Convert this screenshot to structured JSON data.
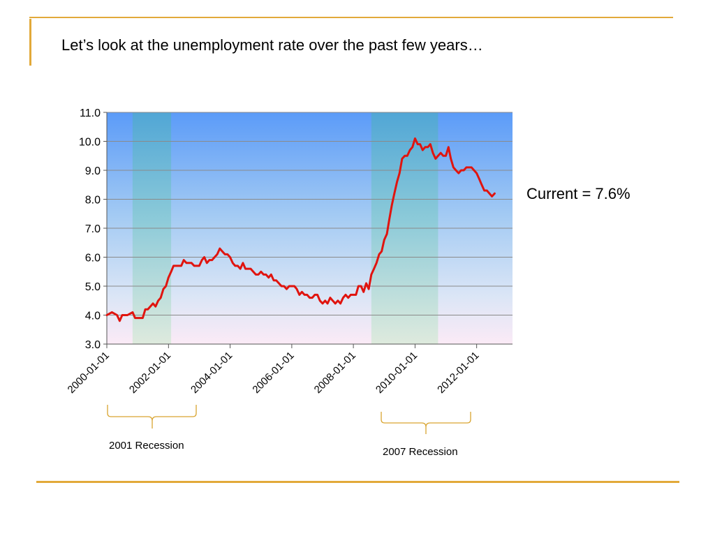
{
  "slide": {
    "title": "Let’s look at the unemployment rate over the past few years…",
    "current_note": "Current = 7.6%",
    "accent_color": "#E2A93A"
  },
  "brackets": [
    {
      "label": "2001 Recession"
    },
    {
      "label": "2007 Recession"
    }
  ],
  "chart_data": {
    "type": "line",
    "title": "",
    "xlabel": "",
    "ylabel": "",
    "ylim": [
      3.0,
      11.0
    ],
    "yticks": [
      "3.0",
      "4.0",
      "5.0",
      "6.0",
      "7.0",
      "8.0",
      "9.0",
      "10.0",
      "11.0"
    ],
    "xlim": [
      "2000-01-01",
      "2013-03-01"
    ],
    "xticks": [
      "2000-01-01",
      "2002-01-01",
      "2004-01-01",
      "2006-01-01",
      "2008-01-01",
      "2010-01-01",
      "2012-01-01"
    ],
    "grid": "horizontal",
    "line_color": "#E0140F",
    "shaded_regions": [
      {
        "start": "2000-11-01",
        "end": "2002-02-01"
      },
      {
        "start": "2008-08-01",
        "end": "2010-10-01"
      }
    ],
    "series": [
      {
        "values": [
          [
            "2000-01-01",
            4.0
          ],
          [
            "2000-03-01",
            4.1
          ],
          [
            "2000-05-01",
            4.0
          ],
          [
            "2000-06-01",
            3.8
          ],
          [
            "2000-07-01",
            4.0
          ],
          [
            "2000-09-01",
            4.0
          ],
          [
            "2000-11-01",
            4.1
          ],
          [
            "2000-12-01",
            3.9
          ],
          [
            "2001-03-01",
            3.9
          ],
          [
            "2001-04-01",
            4.2
          ],
          [
            "2001-05-01",
            4.2
          ],
          [
            "2001-07-01",
            4.4
          ],
          [
            "2001-08-01",
            4.3
          ],
          [
            "2001-09-01",
            4.5
          ],
          [
            "2001-10-01",
            4.6
          ],
          [
            "2001-11-01",
            4.9
          ],
          [
            "2001-12-01",
            5.0
          ],
          [
            "2002-01-01",
            5.3
          ],
          [
            "2002-02-01",
            5.5
          ],
          [
            "2002-03-01",
            5.7
          ],
          [
            "2002-06-01",
            5.7
          ],
          [
            "2002-07-01",
            5.9
          ],
          [
            "2002-08-01",
            5.8
          ],
          [
            "2002-10-01",
            5.8
          ],
          [
            "2002-11-01",
            5.7
          ],
          [
            "2003-01-01",
            5.7
          ],
          [
            "2003-02-01",
            5.9
          ],
          [
            "2003-03-01",
            6.0
          ],
          [
            "2003-04-01",
            5.8
          ],
          [
            "2003-05-01",
            5.9
          ],
          [
            "2003-06-01",
            5.9
          ],
          [
            "2003-07-01",
            6.0
          ],
          [
            "2003-08-01",
            6.1
          ],
          [
            "2003-09-01",
            6.3
          ],
          [
            "2003-10-01",
            6.2
          ],
          [
            "2003-11-01",
            6.1
          ],
          [
            "2003-12-01",
            6.1
          ],
          [
            "2004-01-01",
            6.0
          ],
          [
            "2004-02-01",
            5.8
          ],
          [
            "2004-03-01",
            5.7
          ],
          [
            "2004-04-01",
            5.7
          ],
          [
            "2004-05-01",
            5.6
          ],
          [
            "2004-06-01",
            5.8
          ],
          [
            "2004-07-01",
            5.6
          ],
          [
            "2004-09-01",
            5.6
          ],
          [
            "2004-10-01",
            5.5
          ],
          [
            "2004-11-01",
            5.4
          ],
          [
            "2004-12-01",
            5.4
          ],
          [
            "2005-01-01",
            5.5
          ],
          [
            "2005-02-01",
            5.4
          ],
          [
            "2005-03-01",
            5.4
          ],
          [
            "2005-04-01",
            5.3
          ],
          [
            "2005-05-01",
            5.4
          ],
          [
            "2005-06-01",
            5.2
          ],
          [
            "2005-07-01",
            5.2
          ],
          [
            "2005-08-01",
            5.1
          ],
          [
            "2005-09-01",
            5.0
          ],
          [
            "2005-10-01",
            5.0
          ],
          [
            "2005-11-01",
            4.9
          ],
          [
            "2005-12-01",
            5.0
          ],
          [
            "2006-02-01",
            5.0
          ],
          [
            "2006-03-01",
            4.9
          ],
          [
            "2006-04-01",
            4.7
          ],
          [
            "2006-05-01",
            4.8
          ],
          [
            "2006-06-01",
            4.7
          ],
          [
            "2006-07-01",
            4.7
          ],
          [
            "2006-08-01",
            4.6
          ],
          [
            "2006-09-01",
            4.6
          ],
          [
            "2006-10-01",
            4.7
          ],
          [
            "2006-11-01",
            4.7
          ],
          [
            "2006-12-01",
            4.5
          ],
          [
            "2007-01-01",
            4.4
          ],
          [
            "2007-02-01",
            4.5
          ],
          [
            "2007-03-01",
            4.4
          ],
          [
            "2007-04-01",
            4.6
          ],
          [
            "2007-05-01",
            4.5
          ],
          [
            "2007-06-01",
            4.4
          ],
          [
            "2007-07-01",
            4.5
          ],
          [
            "2007-08-01",
            4.4
          ],
          [
            "2007-09-01",
            4.6
          ],
          [
            "2007-10-01",
            4.7
          ],
          [
            "2007-11-01",
            4.6
          ],
          [
            "2007-12-01",
            4.7
          ],
          [
            "2008-02-01",
            4.7
          ],
          [
            "2008-03-01",
            5.0
          ],
          [
            "2008-04-01",
            5.0
          ],
          [
            "2008-05-01",
            4.8
          ],
          [
            "2008-06-01",
            5.1
          ],
          [
            "2008-07-01",
            4.9
          ],
          [
            "2008-08-01",
            5.4
          ],
          [
            "2008-09-01",
            5.6
          ],
          [
            "2008-10-01",
            5.8
          ],
          [
            "2008-11-01",
            6.1
          ],
          [
            "2008-12-01",
            6.2
          ],
          [
            "2009-01-01",
            6.6
          ],
          [
            "2009-02-01",
            6.8
          ],
          [
            "2009-03-01",
            7.3
          ],
          [
            "2009-04-01",
            7.8
          ],
          [
            "2009-05-01",
            8.2
          ],
          [
            "2009-06-01",
            8.6
          ],
          [
            "2009-07-01",
            8.9
          ],
          [
            "2009-08-01",
            9.4
          ],
          [
            "2009-09-01",
            9.5
          ],
          [
            "2009-10-01",
            9.5
          ],
          [
            "2009-11-01",
            9.7
          ],
          [
            "2009-12-01",
            9.8
          ],
          [
            "2010-01-01",
            10.1
          ],
          [
            "2010-02-01",
            9.9
          ],
          [
            "2010-03-01",
            9.9
          ],
          [
            "2010-04-01",
            9.7
          ],
          [
            "2010-05-01",
            9.8
          ],
          [
            "2010-06-01",
            9.8
          ],
          [
            "2010-07-01",
            9.9
          ],
          [
            "2010-08-01",
            9.6
          ],
          [
            "2010-09-01",
            9.4
          ],
          [
            "2010-10-01",
            9.5
          ],
          [
            "2010-11-01",
            9.6
          ],
          [
            "2010-12-01",
            9.5
          ],
          [
            "2011-01-01",
            9.5
          ],
          [
            "2011-02-01",
            9.8
          ],
          [
            "2011-03-01",
            9.4
          ],
          [
            "2011-04-01",
            9.1
          ],
          [
            "2011-05-01",
            9.0
          ],
          [
            "2011-06-01",
            8.9
          ],
          [
            "2011-07-01",
            9.0
          ],
          [
            "2011-08-01",
            9.0
          ],
          [
            "2011-09-01",
            9.1
          ],
          [
            "2011-11-01",
            9.1
          ],
          [
            "2011-12-01",
            9.0
          ],
          [
            "2012-01-01",
            8.9
          ],
          [
            "2012-02-01",
            8.7
          ],
          [
            "2012-03-01",
            8.5
          ],
          [
            "2012-04-01",
            8.3
          ],
          [
            "2012-05-01",
            8.3
          ],
          [
            "2012-06-01",
            8.2
          ],
          [
            "2012-07-01",
            8.1
          ],
          [
            "2012-08-01",
            8.2
          ]
        ]
      }
    ]
  }
}
